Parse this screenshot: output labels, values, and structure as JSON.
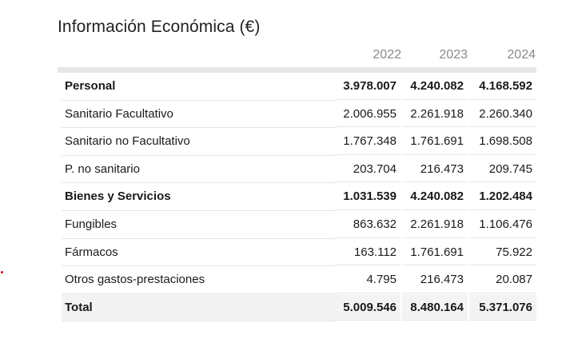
{
  "title": "Información Económica (€)",
  "years": [
    "2022",
    "2023",
    "2024"
  ],
  "rows": [
    {
      "label": "Personal",
      "values": [
        "3.978.007",
        "4.240.082",
        "4.168.592"
      ],
      "bold": true
    },
    {
      "label": "Sanitario Facultativo",
      "values": [
        "2.006.955",
        "2.261.918",
        "2.260.340"
      ],
      "bold": false
    },
    {
      "label": "Sanitario no Facultativo",
      "values": [
        "1.767.348",
        "1.761.691",
        "1.698.508"
      ],
      "bold": false
    },
    {
      "label": "P. no sanitario",
      "values": [
        "203.704",
        "216.473",
        "209.745"
      ],
      "bold": false
    },
    {
      "label": "Bienes y Servicios",
      "values": [
        "1.031.539",
        "4.240.082",
        "1.202.484"
      ],
      "bold": true
    },
    {
      "label": "Fungibles",
      "values": [
        "863.632",
        "2.261.918",
        "1.106.476"
      ],
      "bold": false
    },
    {
      "label": "Fármacos",
      "values": [
        "163.112",
        "1.761.691",
        "75.922"
      ],
      "bold": false
    },
    {
      "label": "Otros gastos-prestaciones",
      "values": [
        "4.795",
        "216.473",
        "20.087"
      ],
      "bold": false
    },
    {
      "label": "Total",
      "values": [
        "5.009.546",
        "8.480.164",
        "5.371.076"
      ],
      "bold": true
    }
  ]
}
